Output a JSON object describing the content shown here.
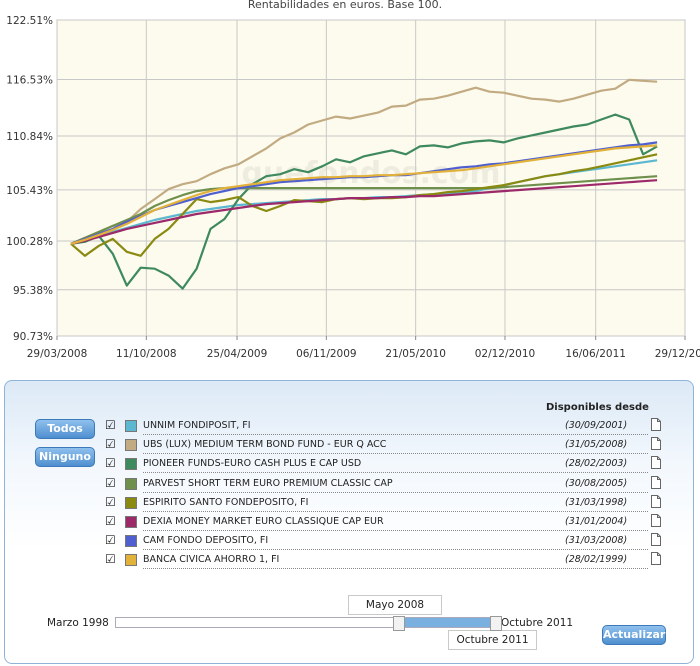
{
  "chart_data": {
    "type": "line",
    "title": "Rentabilidades en euros. Base 100.",
    "xlabel": "",
    "ylabel": "",
    "x_ticks": [
      "29/03/2008",
      "11/10/2008",
      "25/04/2009",
      "06/11/2009",
      "21/05/2010",
      "02/12/2010",
      "16/06/2011",
      "29/12/2011"
    ],
    "y_ticks": [
      "90.73%",
      "95.38%",
      "100.28%",
      "105.43%",
      "110.84%",
      "116.53%",
      "122.51%"
    ],
    "x_range_months": [
      0,
      45
    ],
    "x_tick_months": [
      0,
      6.4,
      12.9,
      19.3,
      25.7,
      32.1,
      38.6,
      45
    ],
    "ylim": [
      90.73,
      122.51
    ],
    "x_unit": "months since 29/03/2008",
    "watermark": "quefondos.com",
    "x": [
      1,
      2,
      3,
      4,
      5,
      6,
      7,
      8,
      9,
      10,
      11,
      12,
      13,
      14,
      15,
      16,
      17,
      18,
      19,
      20,
      21,
      22,
      23,
      24,
      25,
      26,
      27,
      28,
      29,
      30,
      31,
      32,
      33,
      34,
      35,
      36,
      37,
      38,
      39,
      40,
      41,
      42,
      43
    ],
    "series": [
      {
        "name": "UNNIM FONDIPOSIT, FI",
        "color": "#5bb8d0",
        "values": [
          100.0,
          100.4,
          100.8,
          101.2,
          101.6,
          102.0,
          102.4,
          102.7,
          103.0,
          103.3,
          103.5,
          103.7,
          103.9,
          104.0,
          104.1,
          104.2,
          104.3,
          104.4,
          104.5,
          104.5,
          104.6,
          104.6,
          104.7,
          104.7,
          104.8,
          104.9,
          105.0,
          105.1,
          105.2,
          105.3,
          105.6,
          105.9,
          106.2,
          106.5,
          106.8,
          107.0,
          107.2,
          107.4,
          107.6,
          107.8,
          108.0,
          108.2,
          108.4
        ]
      },
      {
        "name": "UBS (LUX) MEDIUM TERM BOND FUND - EUR Q ACC",
        "color": "#c2ab82",
        "values": [
          100.0,
          100.6,
          101.2,
          101.8,
          102.2,
          103.5,
          104.5,
          105.5,
          106.0,
          106.3,
          107.0,
          107.6,
          108.0,
          108.8,
          109.6,
          110.6,
          111.2,
          112.0,
          112.4,
          112.8,
          112.6,
          112.9,
          113.2,
          113.8,
          113.9,
          114.5,
          114.6,
          114.9,
          115.3,
          115.7,
          115.3,
          115.2,
          114.9,
          114.6,
          114.5,
          114.3,
          114.6,
          115.0,
          115.4,
          115.6,
          116.5,
          116.4,
          116.3
        ]
      },
      {
        "name": "PIONEER FUNDS-EURO CASH PLUS E CAP USD",
        "color": "#3e8a5e",
        "values": [
          100.0,
          100.2,
          100.8,
          99.0,
          95.8,
          97.6,
          97.5,
          96.8,
          95.5,
          97.5,
          101.5,
          102.5,
          104.5,
          106.0,
          106.8,
          107.0,
          107.5,
          107.2,
          107.8,
          108.5,
          108.2,
          108.8,
          109.1,
          109.4,
          109.0,
          109.8,
          109.9,
          109.7,
          110.1,
          110.3,
          110.4,
          110.2,
          110.6,
          110.9,
          111.2,
          111.5,
          111.8,
          112.0,
          112.5,
          113.0,
          112.5,
          109.0,
          109.8
        ]
      },
      {
        "name": "PARVEST SHORT TERM EURO PREMIUM CLASSIC CAP",
        "color": "#6f8f4d",
        "values": [
          100.0,
          100.6,
          101.2,
          101.8,
          102.4,
          103.0,
          103.8,
          104.4,
          104.9,
          105.3,
          105.5,
          105.6,
          105.6,
          105.6,
          105.6,
          105.6,
          105.6,
          105.6,
          105.6,
          105.6,
          105.6,
          105.6,
          105.6,
          105.6,
          105.6,
          105.6,
          105.6,
          105.6,
          105.6,
          105.6,
          105.6,
          105.7,
          105.8,
          105.9,
          106.0,
          106.1,
          106.2,
          106.3,
          106.4,
          106.5,
          106.6,
          106.7,
          106.8
        ]
      },
      {
        "name": "ESPIRITO SANTO FONDEPOSITO, FI",
        "color": "#8a8a10",
        "values": [
          100.0,
          98.8,
          99.8,
          100.5,
          99.2,
          98.8,
          100.5,
          101.5,
          103.0,
          104.5,
          104.2,
          104.4,
          104.7,
          103.8,
          103.3,
          103.8,
          104.4,
          104.3,
          104.2,
          104.5,
          104.6,
          104.5,
          104.6,
          104.6,
          104.7,
          104.9,
          105.0,
          105.2,
          105.3,
          105.5,
          105.7,
          105.9,
          106.2,
          106.5,
          106.8,
          107.0,
          107.3,
          107.5,
          107.8,
          108.1,
          108.4,
          108.7,
          109.0
        ]
      },
      {
        "name": "DEXIA MONEY MARKET EURO CLASSIQUE CAP EUR",
        "color": "#9c2a6a",
        "values": [
          100.0,
          100.3,
          100.7,
          101.1,
          101.5,
          101.8,
          102.1,
          102.4,
          102.7,
          103.0,
          103.2,
          103.4,
          103.6,
          103.8,
          104.0,
          104.1,
          104.2,
          104.3,
          104.4,
          104.5,
          104.6,
          104.6,
          104.6,
          104.7,
          104.7,
          104.8,
          104.8,
          104.9,
          105.0,
          105.1,
          105.2,
          105.3,
          105.4,
          105.5,
          105.6,
          105.7,
          105.8,
          105.9,
          106.0,
          106.1,
          106.2,
          106.3,
          106.4
        ]
      },
      {
        "name": "CAM FONDO DEPOSITO, FI",
        "color": "#4f5fd0",
        "values": [
          100.0,
          100.5,
          101.0,
          101.5,
          102.2,
          102.8,
          103.4,
          103.8,
          104.2,
          104.6,
          105.0,
          105.3,
          105.6,
          105.8,
          106.0,
          106.2,
          106.3,
          106.4,
          106.5,
          106.6,
          106.7,
          106.7,
          106.8,
          106.9,
          106.9,
          107.1,
          107.3,
          107.5,
          107.7,
          107.8,
          108.0,
          108.1,
          108.3,
          108.5,
          108.7,
          108.9,
          109.1,
          109.3,
          109.5,
          109.7,
          109.9,
          110.0,
          110.2
        ]
      },
      {
        "name": "BANCA CIVICA AHORRO 1, FI",
        "color": "#e2b13a",
        "values": [
          100.0,
          100.4,
          100.9,
          101.4,
          102.0,
          102.7,
          103.4,
          103.9,
          104.4,
          104.9,
          105.3,
          105.6,
          105.8,
          106.0,
          106.2,
          106.4,
          106.5,
          106.6,
          106.7,
          106.7,
          106.8,
          106.8,
          106.9,
          106.9,
          107.0,
          107.1,
          107.2,
          107.3,
          107.4,
          107.6,
          107.8,
          108.0,
          108.2,
          108.4,
          108.6,
          108.8,
          109.0,
          109.2,
          109.4,
          109.6,
          109.7,
          109.8,
          109.9
        ]
      }
    ],
    "grid": true,
    "legend": "none"
  },
  "panel": {
    "buttons": {
      "all": "Todos",
      "none": "Ninguno",
      "update": "Actualizar"
    },
    "available_since_header": "Disponibles desde",
    "funds": [
      {
        "name": "UNNIM FONDIPOSIT, FI",
        "since": "(30/09/2001)",
        "color": "#5bb8d0",
        "checked": true
      },
      {
        "name": "UBS (LUX) MEDIUM TERM BOND FUND - EUR Q ACC",
        "since": "(31/05/2008)",
        "color": "#c2ab82",
        "checked": true
      },
      {
        "name": "PIONEER FUNDS-EURO CASH PLUS E CAP USD",
        "since": "(28/02/2003)",
        "color": "#3e8a5e",
        "checked": true
      },
      {
        "name": "PARVEST SHORT TERM EURO PREMIUM CLASSIC CAP",
        "since": "(30/08/2005)",
        "color": "#6f8f4d",
        "checked": true
      },
      {
        "name": "ESPIRITO SANTO FONDEPOSITO, FI",
        "since": "(31/03/1998)",
        "color": "#8a8a10",
        "checked": true
      },
      {
        "name": "DEXIA MONEY MARKET EURO CLASSIQUE CAP EUR",
        "since": "(31/01/2004)",
        "color": "#9c2a6a",
        "checked": true
      },
      {
        "name": "CAM FONDO DEPOSITO, FI",
        "since": "(31/03/2008)",
        "color": "#4f5fd0",
        "checked": true
      },
      {
        "name": "BANCA CIVICA AHORRO 1, FI",
        "since": "(28/02/1999)",
        "color": "#e2b13a",
        "checked": true
      }
    ],
    "slider": {
      "min_label": "Marzo 1998",
      "max_label": "Octubre 2011",
      "start_label": "Mayo 2008",
      "end_label": "Octubre 2011",
      "start_fraction": 0.744,
      "end_fraction": 1.0
    }
  }
}
